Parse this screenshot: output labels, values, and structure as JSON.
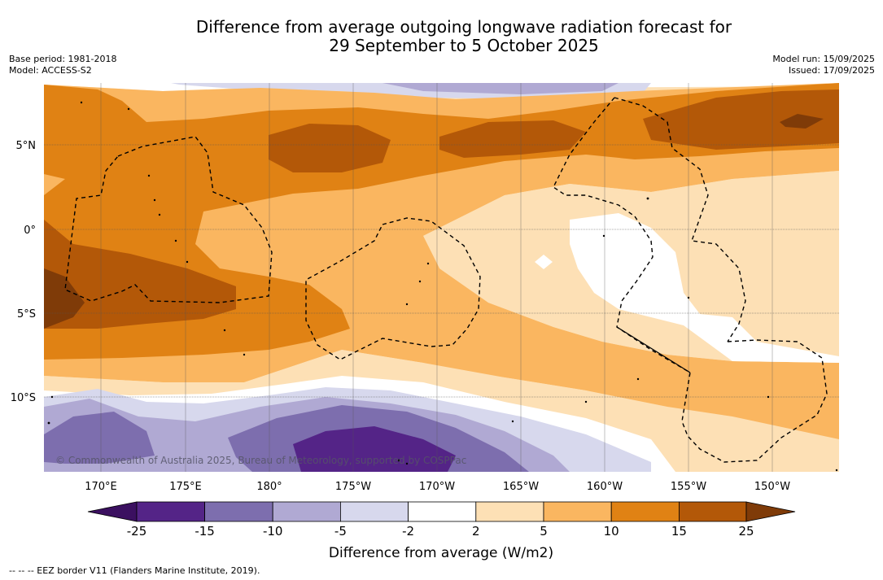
{
  "title": {
    "line1": "Difference from average outgoing longwave radiation forecast for",
    "line2": "29 September to 5 October 2025"
  },
  "meta_left": {
    "base_period": "Base period: 1981-2018",
    "model": "Model: ACCESS-S2"
  },
  "meta_right": {
    "model_run": "Model run: 15/09/2025",
    "issued": "Issued: 17/09/2025"
  },
  "map": {
    "latitude_labels": [
      "5°N",
      "0°",
      "5°S",
      "10°S"
    ],
    "longitude_labels": [
      "170°E",
      "175°E",
      "180°",
      "175°W",
      "170°W",
      "165°W",
      "160°W",
      "155°W",
      "150°W"
    ],
    "copyright": "© Commonwealth of Australia 2025, Bureau of Meteorology, supported by COSPPac"
  },
  "colorbar": {
    "label": "Difference from average (W/m2)",
    "ticks": [
      "-25",
      "-15",
      "-10",
      "-5",
      "-2",
      "2",
      "5",
      "10",
      "15",
      "25"
    ],
    "colors": [
      "#3b1060",
      "#542487",
      "#7d6eae",
      "#b0a9d3",
      "#d7d8ed",
      "#ffffff",
      "#fde0b5",
      "#fab660",
      "#e08214",
      "#b35808",
      "#7f3b08"
    ]
  },
  "footer": {
    "eez_legend": "--  --  -- EEZ border V11 (Flanders Marine Institute, 2019)."
  }
}
